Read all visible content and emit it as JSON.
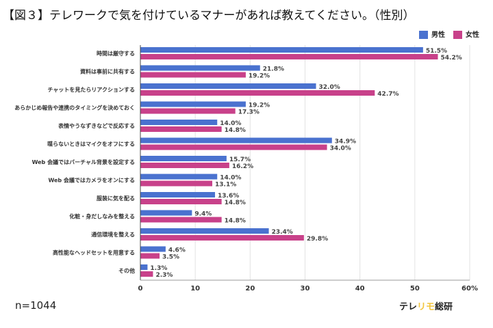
{
  "title": "【図３】テレワークで気を付けているマナーがあれば教えてください。（性別）",
  "sample": "n=1044",
  "logo": {
    "part1": "テレ",
    "part2": "リモ",
    "part3": "総研"
  },
  "colors": {
    "male": "#4a72cf",
    "female": "#c8418a",
    "logo_accent": "#f2c53d"
  },
  "chart_data": {
    "type": "bar",
    "orientation": "horizontal",
    "categories": [
      "時間は厳守する",
      "資料は事前に共有する",
      "チャットを見たらリアクションする",
      "あらかじめ報告や連携のタイミングを決めておく",
      "表情やうなずきなどで反応する",
      "喋らないときはマイクをオフにする",
      "Web 会議ではバーチャル背景を設定する",
      "Web 会議ではカメラをオンにする",
      "服装に気を配る",
      "化粧・身だしなみを整える",
      "通信環境を整える",
      "高性能なヘッドセットを用意する",
      "その他"
    ],
    "series": [
      {
        "name": "男性",
        "values": [
          51.5,
          21.8,
          32.0,
          19.2,
          14.0,
          34.9,
          15.7,
          14.0,
          13.6,
          9.4,
          23.4,
          4.6,
          1.3
        ]
      },
      {
        "name": "女性",
        "values": [
          54.2,
          19.2,
          42.7,
          17.3,
          14.8,
          34.0,
          16.2,
          13.1,
          14.8,
          14.8,
          29.8,
          3.5,
          2.3
        ]
      }
    ],
    "xlim": [
      0,
      60
    ],
    "xticks": [
      "0",
      "10",
      "20",
      "30",
      "40",
      "50",
      "60%"
    ],
    "grid": true,
    "legend": "top-right"
  }
}
